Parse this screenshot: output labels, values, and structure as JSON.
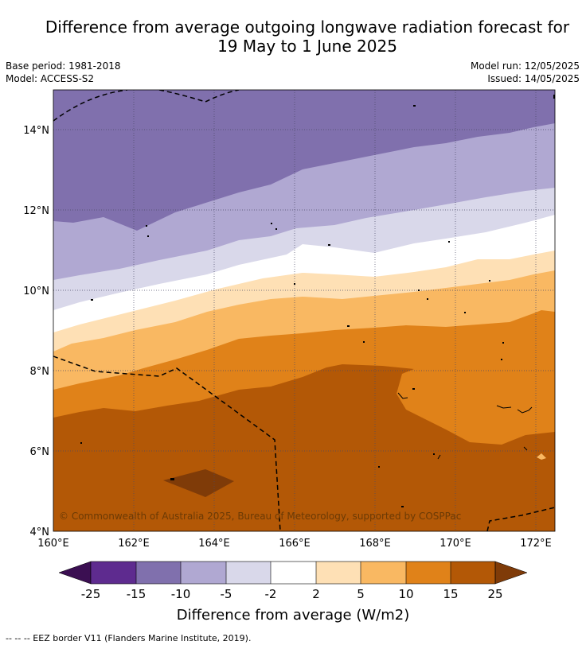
{
  "title_line1": "Difference from average outgoing longwave radiation forecast for",
  "title_line2": "19 May to 1 June 2025",
  "base_period": "Base period: 1981-2018",
  "model": "Model: ACCESS-S2",
  "model_run": "Model run: 12/05/2025",
  "issued": "Issued: 14/05/2025",
  "copyright": "© Commonwealth of Australia 2025, Bureau of Meteorology, supported by COSPPac",
  "colorbar": {
    "title": "Difference from average (W/m2)",
    "tick_labels": [
      "-25",
      "-15",
      "-10",
      "-5",
      "-2",
      "2",
      "5",
      "10",
      "15",
      "25"
    ],
    "colors": {
      "below_-25": "#3b0f52",
      "-25_-15": "#5e2b8f",
      "-15_-10": "#8070ad",
      "-10_-5": "#b0a8d2",
      "-5_-2": "#d9d8ea",
      "-2_2": "#ffffff",
      "2_5": "#fee0b5",
      "5_10": "#f9b862",
      "10_15": "#e08219",
      "15_25": "#b35806",
      "above_25": "#7f3b08"
    }
  },
  "map": {
    "lon_range": [
      160,
      172.5
    ],
    "lat_range": [
      4,
      15
    ],
    "x_tick_labels": [
      "160°E",
      "162°E",
      "164°E",
      "166°E",
      "168°E",
      "170°E",
      "172°E"
    ],
    "y_tick_labels": [
      "4°N",
      "6°N",
      "8°N",
      "10°N",
      "12°N",
      "14°N"
    ],
    "grid": "dotted"
  },
  "footer": "--  --  -- EEZ border V11 (Flanders Marine Institute, 2019)."
}
